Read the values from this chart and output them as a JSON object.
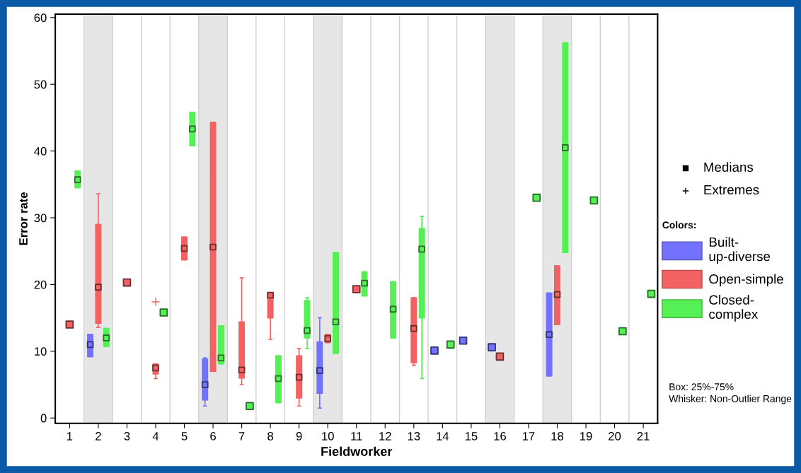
{
  "chart_data": {
    "type": "box",
    "xlabel": "Fieldworker",
    "ylabel": "Error rate",
    "categories": [
      "1",
      "2",
      "3",
      "4",
      "5",
      "6",
      "7",
      "8",
      "9",
      "10",
      "11",
      "12",
      "13",
      "14",
      "15",
      "16",
      "17",
      "18",
      "19",
      "20",
      "21"
    ],
    "ylim": [
      -0.8,
      60.5
    ],
    "yticks": [
      0,
      10,
      20,
      30,
      40,
      50,
      60
    ],
    "grid": "x",
    "legend": "right",
    "legend_title": "Colors:",
    "marker": "square",
    "bands": [
      {
        "axis": "x",
        "from": "2",
        "to": "2",
        "color": "#e6e6e6"
      },
      {
        "axis": "x",
        "from": "6",
        "to": "6",
        "color": "#e6e6e6"
      },
      {
        "axis": "x",
        "from": "10",
        "to": "10",
        "color": "#e6e6e6"
      },
      {
        "axis": "x",
        "from": "16",
        "to": "16",
        "color": "#e6e6e6"
      },
      {
        "axis": "x",
        "from": "18",
        "to": "18",
        "color": "#e6e6e6"
      }
    ],
    "annotations": [
      "Medians",
      "Extremes",
      "Box: 25%-75%",
      "Whisker: Non-Outlier Range"
    ],
    "series": [
      {
        "name": "Built-up-diverse",
        "color": "#7272ff",
        "boxes": [
          null,
          {
            "low": 9.2,
            "q1": 9.2,
            "median": 11,
            "q3": 12.5,
            "high": 12.5
          },
          null,
          null,
          null,
          {
            "low": 1.8,
            "q1": 2.7,
            "median": 5,
            "q3": 8.8,
            "high": 9
          },
          null,
          null,
          null,
          {
            "low": 1.5,
            "q1": 3.7,
            "median": 7.1,
            "q3": 11.4,
            "high": 15
          },
          null,
          null,
          null,
          null,
          null,
          null,
          null,
          {
            "low": 6.3,
            "q1": 6.3,
            "median": 12.5,
            "q3": 18.7,
            "high": 18.7
          },
          null,
          null,
          null
        ]
      },
      {
        "name": "Open-simple",
        "color": "#f26262",
        "boxes": [
          null,
          {
            "low": 13.6,
            "q1": 14.2,
            "median": 19.6,
            "q3": 29,
            "high": 33.6
          },
          null,
          {
            "low": 5.9,
            "q1": 6.6,
            "median": 7.5,
            "q3": 8.1,
            "high": 8.1,
            "outliers": [
              17.4
            ]
          },
          {
            "low": 23.7,
            "q1": 23.7,
            "median": 25.4,
            "q3": 27.1,
            "high": 27.1
          },
          {
            "low": 7,
            "q1": 7,
            "median": 25.6,
            "q3": 44.3,
            "high": 44.3
          },
          {
            "low": 5,
            "q1": 6,
            "median": 7.2,
            "q3": 14.4,
            "high": 21
          },
          {
            "low": 11.8,
            "q1": 15,
            "median": 18.4,
            "q3": 18.6,
            "high": 18.6
          },
          {
            "low": 1.8,
            "q1": 3,
            "median": 6.1,
            "q3": 9.3,
            "high": 10.4
          },
          {
            "low": 11.3,
            "q1": 11.3,
            "median": 11.9,
            "q3": 12.5,
            "high": 12.5
          },
          null,
          null,
          {
            "low": 7.9,
            "q1": 8.3,
            "median": 13.4,
            "q3": 18,
            "high": 18
          },
          null,
          null,
          null,
          null,
          {
            "low": 14,
            "q1": 14,
            "median": 18.5,
            "q3": 22.8,
            "high": 22.8
          },
          null,
          null,
          null
        ]
      },
      {
        "name": "Closed-complex",
        "color": "#55f055",
        "boxes": [
          {
            "low": 34.5,
            "q1": 34.5,
            "median": 35.7,
            "q3": 37,
            "high": 37
          },
          {
            "low": 10.7,
            "q1": 10.7,
            "median": 12,
            "q3": 13.4,
            "high": 13.4
          },
          null,
          null,
          {
            "low": 40.8,
            "q1": 40.8,
            "median": 43.3,
            "q3": 45.8,
            "high": 45.8
          },
          {
            "low": 8.1,
            "q1": 8.1,
            "median": 9,
            "q3": 13.8,
            "high": 13.8
          },
          null,
          {
            "low": 2.3,
            "q1": 2.3,
            "median": 5.9,
            "q3": 9.3,
            "high": 9.3
          },
          {
            "low": 10.4,
            "q1": 12,
            "median": 13.1,
            "q3": 17.6,
            "high": 18
          },
          {
            "low": 9.7,
            "q1": 9.7,
            "median": 14.4,
            "q3": 24.8,
            "high": 24.8
          },
          {
            "low": 18.3,
            "q1": 18.3,
            "median": 20.2,
            "q3": 21.9,
            "high": 21.9
          },
          {
            "low": 12,
            "q1": 12,
            "median": 16.3,
            "q3": 20.4,
            "high": 20.4
          },
          {
            "low": 5.9,
            "q1": 15,
            "median": 25.3,
            "q3": 28.4,
            "high": 30.2
          },
          null,
          null,
          null,
          null,
          {
            "low": 24.8,
            "q1": 24.8,
            "median": 40.5,
            "q3": 56.2,
            "high": 56.2
          },
          null,
          null,
          null
        ]
      },
      {
        "type": "scatter",
        "color": "#7272ff",
        "x": [
          "14",
          "15",
          "16"
        ],
        "values": [
          10.1,
          11.6,
          10.6
        ]
      },
      {
        "type": "scatter",
        "color": "#f26262",
        "x": [
          "1",
          "3",
          "11",
          "16"
        ],
        "values": [
          14,
          20.3,
          19.3,
          9.2
        ]
      },
      {
        "type": "scatter",
        "color": "#55f055",
        "x": [
          "4",
          "7",
          "14",
          "17",
          "19",
          "20",
          "21"
        ],
        "values": [
          15.8,
          1.8,
          11,
          33,
          32.6,
          13,
          18.6
        ]
      }
    ]
  }
}
